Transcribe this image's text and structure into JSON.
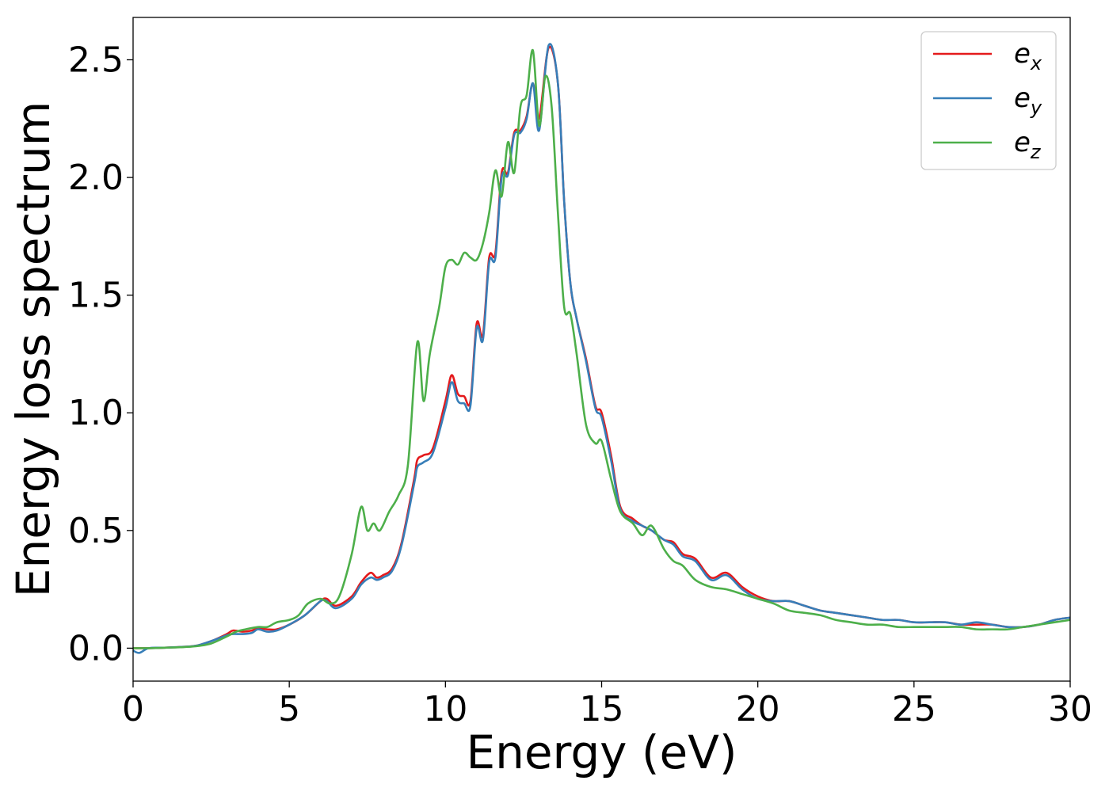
{
  "chart_data": {
    "type": "line",
    "title": "",
    "xlabel": "Energy (eV)",
    "ylabel": "Energy loss spectrum",
    "xlim": [
      0,
      30
    ],
    "ylim": [
      -0.14,
      2.68
    ],
    "xticks": [
      0,
      5,
      10,
      15,
      20,
      25,
      30
    ],
    "xtick_labels": [
      "0",
      "5",
      "10",
      "15",
      "20",
      "25",
      "30"
    ],
    "yticks": [
      0.0,
      0.5,
      1.0,
      1.5,
      2.0,
      2.5
    ],
    "ytick_labels": [
      "0.0",
      "0.5",
      "1.0",
      "1.5",
      "2.0",
      "2.5"
    ],
    "grid": false,
    "legend_position": "top-right",
    "series": [
      {
        "name": "e",
        "subscript": "x",
        "color": "#e41a1c",
        "x": [
          0,
          0.5,
          1,
          1.5,
          2,
          2.5,
          3,
          3.2,
          3.5,
          3.8,
          4,
          4.3,
          4.6,
          5,
          5.5,
          6,
          6.2,
          6.5,
          7,
          7.3,
          7.6,
          7.8,
          8,
          8.3,
          8.6,
          9,
          9.1,
          9.3,
          9.6,
          10,
          10.2,
          10.4,
          10.6,
          10.8,
          11,
          11.2,
          11.4,
          11.6,
          11.8,
          12,
          12.2,
          12.4,
          12.6,
          12.8,
          13,
          13.3,
          13.6,
          13.8,
          14,
          14.2,
          14.5,
          14.8,
          15,
          15.3,
          15.6,
          16,
          16.3,
          16.6,
          17,
          17.3,
          17.6,
          18,
          18.5,
          19,
          19.5,
          20,
          20.5,
          21,
          21.5,
          22,
          22.5,
          23,
          23.5,
          24,
          24.5,
          25,
          25.5,
          26,
          26.5,
          27,
          27.5,
          28,
          28.5,
          29,
          29.5,
          30
        ],
        "y": [
          0.0,
          0.0,
          0.002,
          0.005,
          0.01,
          0.03,
          0.06,
          0.075,
          0.07,
          0.075,
          0.085,
          0.08,
          0.08,
          0.1,
          0.14,
          0.2,
          0.21,
          0.18,
          0.22,
          0.28,
          0.32,
          0.3,
          0.31,
          0.34,
          0.45,
          0.72,
          0.8,
          0.82,
          0.85,
          1.05,
          1.16,
          1.08,
          1.07,
          1.05,
          1.38,
          1.33,
          1.66,
          1.68,
          2.02,
          2.02,
          2.19,
          2.2,
          2.26,
          2.4,
          2.25,
          2.55,
          2.4,
          1.9,
          1.55,
          1.4,
          1.23,
          1.03,
          1.0,
          0.82,
          0.6,
          0.55,
          0.52,
          0.5,
          0.46,
          0.45,
          0.4,
          0.38,
          0.3,
          0.32,
          0.26,
          0.22,
          0.2,
          0.2,
          0.18,
          0.16,
          0.15,
          0.14,
          0.13,
          0.12,
          0.12,
          0.11,
          0.11,
          0.11,
          0.1,
          0.1,
          0.1,
          0.09,
          0.09,
          0.1,
          0.12,
          0.13
        ]
      },
      {
        "name": "e",
        "subscript": "y",
        "color": "#377eb8",
        "x": [
          0,
          0.2,
          0.5,
          1,
          1.5,
          2,
          2.5,
          3,
          3.2,
          3.5,
          3.8,
          4,
          4.3,
          4.6,
          5,
          5.5,
          6,
          6.2,
          6.5,
          7,
          7.3,
          7.6,
          7.8,
          8,
          8.3,
          8.6,
          9,
          9.1,
          9.3,
          9.6,
          10,
          10.2,
          10.4,
          10.6,
          10.8,
          11,
          11.2,
          11.4,
          11.6,
          11.8,
          12,
          12.2,
          12.4,
          12.6,
          12.8,
          13,
          13.3,
          13.6,
          13.8,
          14,
          14.2,
          14.5,
          14.8,
          15,
          15.3,
          15.6,
          16,
          16.3,
          16.6,
          17,
          17.3,
          17.6,
          18,
          18.5,
          19,
          19.5,
          20,
          20.5,
          21,
          21.5,
          22,
          22.5,
          23,
          23.5,
          24,
          24.5,
          25,
          25.5,
          26,
          26.5,
          27,
          27.5,
          28,
          28.5,
          29,
          29.5,
          30
        ],
        "y": [
          -0.01,
          -0.02,
          0.0,
          0.002,
          0.005,
          0.01,
          0.03,
          0.055,
          0.06,
          0.06,
          0.065,
          0.08,
          0.07,
          0.075,
          0.1,
          0.14,
          0.2,
          0.2,
          0.17,
          0.21,
          0.27,
          0.3,
          0.29,
          0.3,
          0.33,
          0.44,
          0.7,
          0.77,
          0.79,
          0.83,
          1.02,
          1.13,
          1.05,
          1.04,
          1.03,
          1.36,
          1.31,
          1.64,
          1.66,
          2.0,
          2.01,
          2.18,
          2.19,
          2.25,
          2.4,
          2.2,
          2.56,
          2.4,
          1.9,
          1.55,
          1.4,
          1.22,
          1.02,
          0.98,
          0.8,
          0.59,
          0.54,
          0.52,
          0.5,
          0.46,
          0.44,
          0.39,
          0.37,
          0.29,
          0.31,
          0.25,
          0.21,
          0.2,
          0.2,
          0.18,
          0.16,
          0.15,
          0.14,
          0.13,
          0.12,
          0.12,
          0.11,
          0.11,
          0.11,
          0.1,
          0.11,
          0.1,
          0.09,
          0.09,
          0.1,
          0.12,
          0.13
        ]
      },
      {
        "name": "e",
        "subscript": "z",
        "color": "#4daf4a",
        "x": [
          0,
          0.5,
          1,
          1.5,
          2,
          2.5,
          3,
          3.3,
          3.6,
          4,
          4.3,
          4.6,
          5,
          5.3,
          5.6,
          6,
          6.3,
          6.6,
          7,
          7.3,
          7.5,
          7.7,
          7.9,
          8.2,
          8.5,
          8.8,
          9.1,
          9.3,
          9.5,
          9.8,
          10,
          10.2,
          10.4,
          10.6,
          10.8,
          11,
          11.2,
          11.4,
          11.6,
          11.8,
          12,
          12.2,
          12.4,
          12.6,
          12.8,
          13,
          13.2,
          13.4,
          13.6,
          13.8,
          14,
          14.2,
          14.5,
          14.8,
          15,
          15.3,
          15.6,
          16,
          16.3,
          16.6,
          17,
          17.3,
          17.6,
          18,
          18.5,
          19,
          19.5,
          20,
          20.5,
          21,
          21.5,
          22,
          22.5,
          23,
          23.5,
          24,
          24.5,
          25,
          25.5,
          26,
          26.5,
          27,
          27.5,
          28,
          28.5,
          29,
          29.5,
          30
        ],
        "y": [
          0.0,
          0.0,
          0.002,
          0.004,
          0.008,
          0.02,
          0.05,
          0.07,
          0.08,
          0.09,
          0.09,
          0.11,
          0.12,
          0.14,
          0.19,
          0.21,
          0.19,
          0.22,
          0.4,
          0.6,
          0.5,
          0.53,
          0.5,
          0.58,
          0.65,
          0.78,
          1.3,
          1.05,
          1.25,
          1.45,
          1.62,
          1.65,
          1.63,
          1.68,
          1.66,
          1.65,
          1.72,
          1.85,
          2.03,
          1.92,
          2.15,
          2.02,
          2.3,
          2.35,
          2.54,
          2.22,
          2.43,
          2.3,
          1.85,
          1.45,
          1.42,
          1.25,
          0.95,
          0.87,
          0.88,
          0.72,
          0.58,
          0.53,
          0.48,
          0.52,
          0.42,
          0.37,
          0.35,
          0.29,
          0.26,
          0.25,
          0.23,
          0.21,
          0.19,
          0.16,
          0.15,
          0.14,
          0.12,
          0.11,
          0.1,
          0.1,
          0.09,
          0.09,
          0.09,
          0.09,
          0.09,
          0.08,
          0.08,
          0.08,
          0.09,
          0.1,
          0.11,
          0.12
        ]
      }
    ]
  }
}
